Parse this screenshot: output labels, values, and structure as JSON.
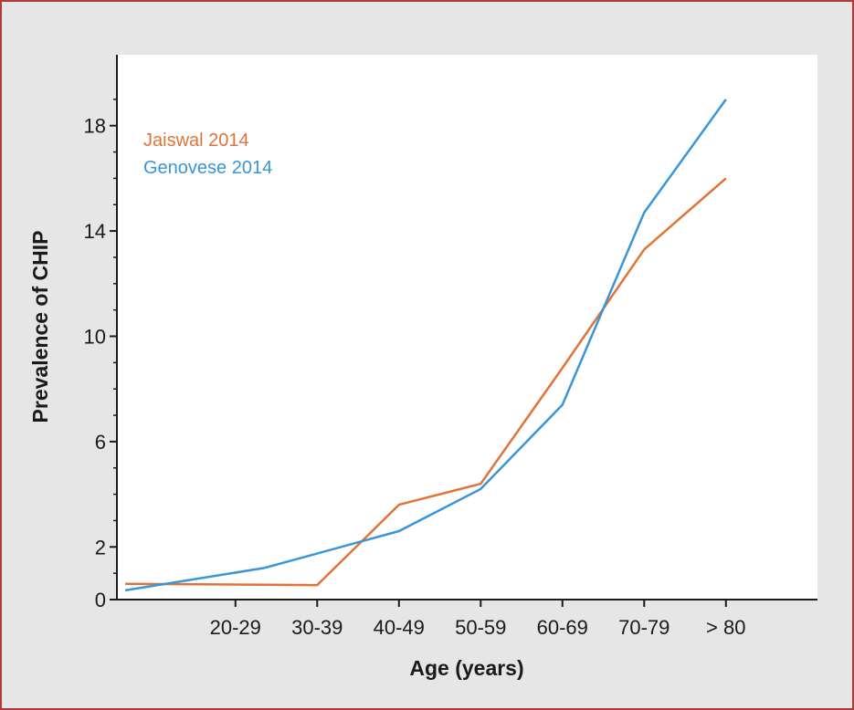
{
  "chart_data": {
    "type": "line",
    "title": "",
    "xlabel": "Age (years)",
    "ylabel": "Prevalence of CHIP",
    "ylim": [
      0,
      20
    ],
    "y_ticks": [
      0,
      2,
      6,
      10,
      14,
      18
    ],
    "categories": [
      "20-29",
      "30-39",
      "40-49",
      "50-59",
      "60-69",
      "70-79",
      "> 80"
    ],
    "grid": false,
    "legend": "top-left",
    "series": [
      {
        "name": "Jaiswal 2014",
        "color": "#e0733a",
        "x": [
          "",
          "30-39",
          "",
          "50-59",
          "",
          "70-79",
          "> 80"
        ],
        "points": [
          {
            "x": 0,
            "y": 0.6
          },
          {
            "x": 2.0,
            "y": 0.55
          },
          {
            "x": 3.0,
            "y": 3.6
          },
          {
            "x": 4.0,
            "y": 4.4
          },
          {
            "x": 5.0,
            "y": 8.8
          },
          {
            "x": 6.0,
            "y": 13.3
          },
          {
            "x": 7.0,
            "y": 16.0
          }
        ]
      },
      {
        "name": "Genovese 2014",
        "color": "#3a95d8",
        "points": [
          {
            "x": 0,
            "y": 0.35
          },
          {
            "x": 1.35,
            "y": 1.2
          },
          {
            "x": 3.0,
            "y": 2.6
          },
          {
            "x": 4.0,
            "y": 4.2
          },
          {
            "x": 5.0,
            "y": 7.4
          },
          {
            "x": 6.0,
            "y": 14.7
          },
          {
            "x": 7.0,
            "y": 19.0
          }
        ]
      }
    ]
  }
}
